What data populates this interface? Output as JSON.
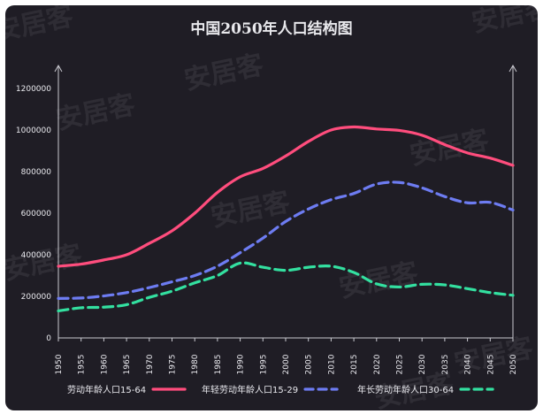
{
  "chart_data": {
    "type": "line",
    "title": "中国2050年人口结构图",
    "xlabel": "",
    "ylabel": "",
    "x": [
      1950,
      1955,
      1960,
      1965,
      1970,
      1975,
      1980,
      1985,
      1990,
      1995,
      2000,
      2005,
      2010,
      2015,
      2020,
      2025,
      2030,
      2035,
      2040,
      2045,
      2050
    ],
    "ylim": [
      0,
      1200000
    ],
    "yticks": [
      "0",
      "200000",
      "400000",
      "600000",
      "800000",
      "1000000",
      "1200000"
    ],
    "series": [
      {
        "name": "劳动年龄人口15-64",
        "color": "#ff4d7d",
        "dash": "solid",
        "values": [
          345000,
          355000,
          375000,
          400000,
          455000,
          515000,
          600000,
          700000,
          775000,
          815000,
          875000,
          945000,
          1000000,
          1015000,
          1005000,
          998000,
          975000,
          930000,
          890000,
          865000,
          830000
        ]
      },
      {
        "name": "年轻劳动年龄人口15-29",
        "color": "#6d7cf2",
        "dash": "dashed",
        "values": [
          190000,
          192000,
          202000,
          218000,
          242000,
          270000,
          300000,
          345000,
          410000,
          480000,
          560000,
          620000,
          665000,
          695000,
          740000,
          748000,
          722000,
          680000,
          650000,
          652000,
          615000
        ]
      },
      {
        "name": "年长劳动年龄人口30-64",
        "color": "#33e0a0",
        "dash": "dashed",
        "values": [
          130000,
          145000,
          148000,
          160000,
          195000,
          225000,
          265000,
          300000,
          360000,
          340000,
          325000,
          340000,
          345000,
          315000,
          260000,
          245000,
          258000,
          255000,
          237000,
          218000,
          205000
        ]
      }
    ]
  },
  "watermark_text": "安居客"
}
